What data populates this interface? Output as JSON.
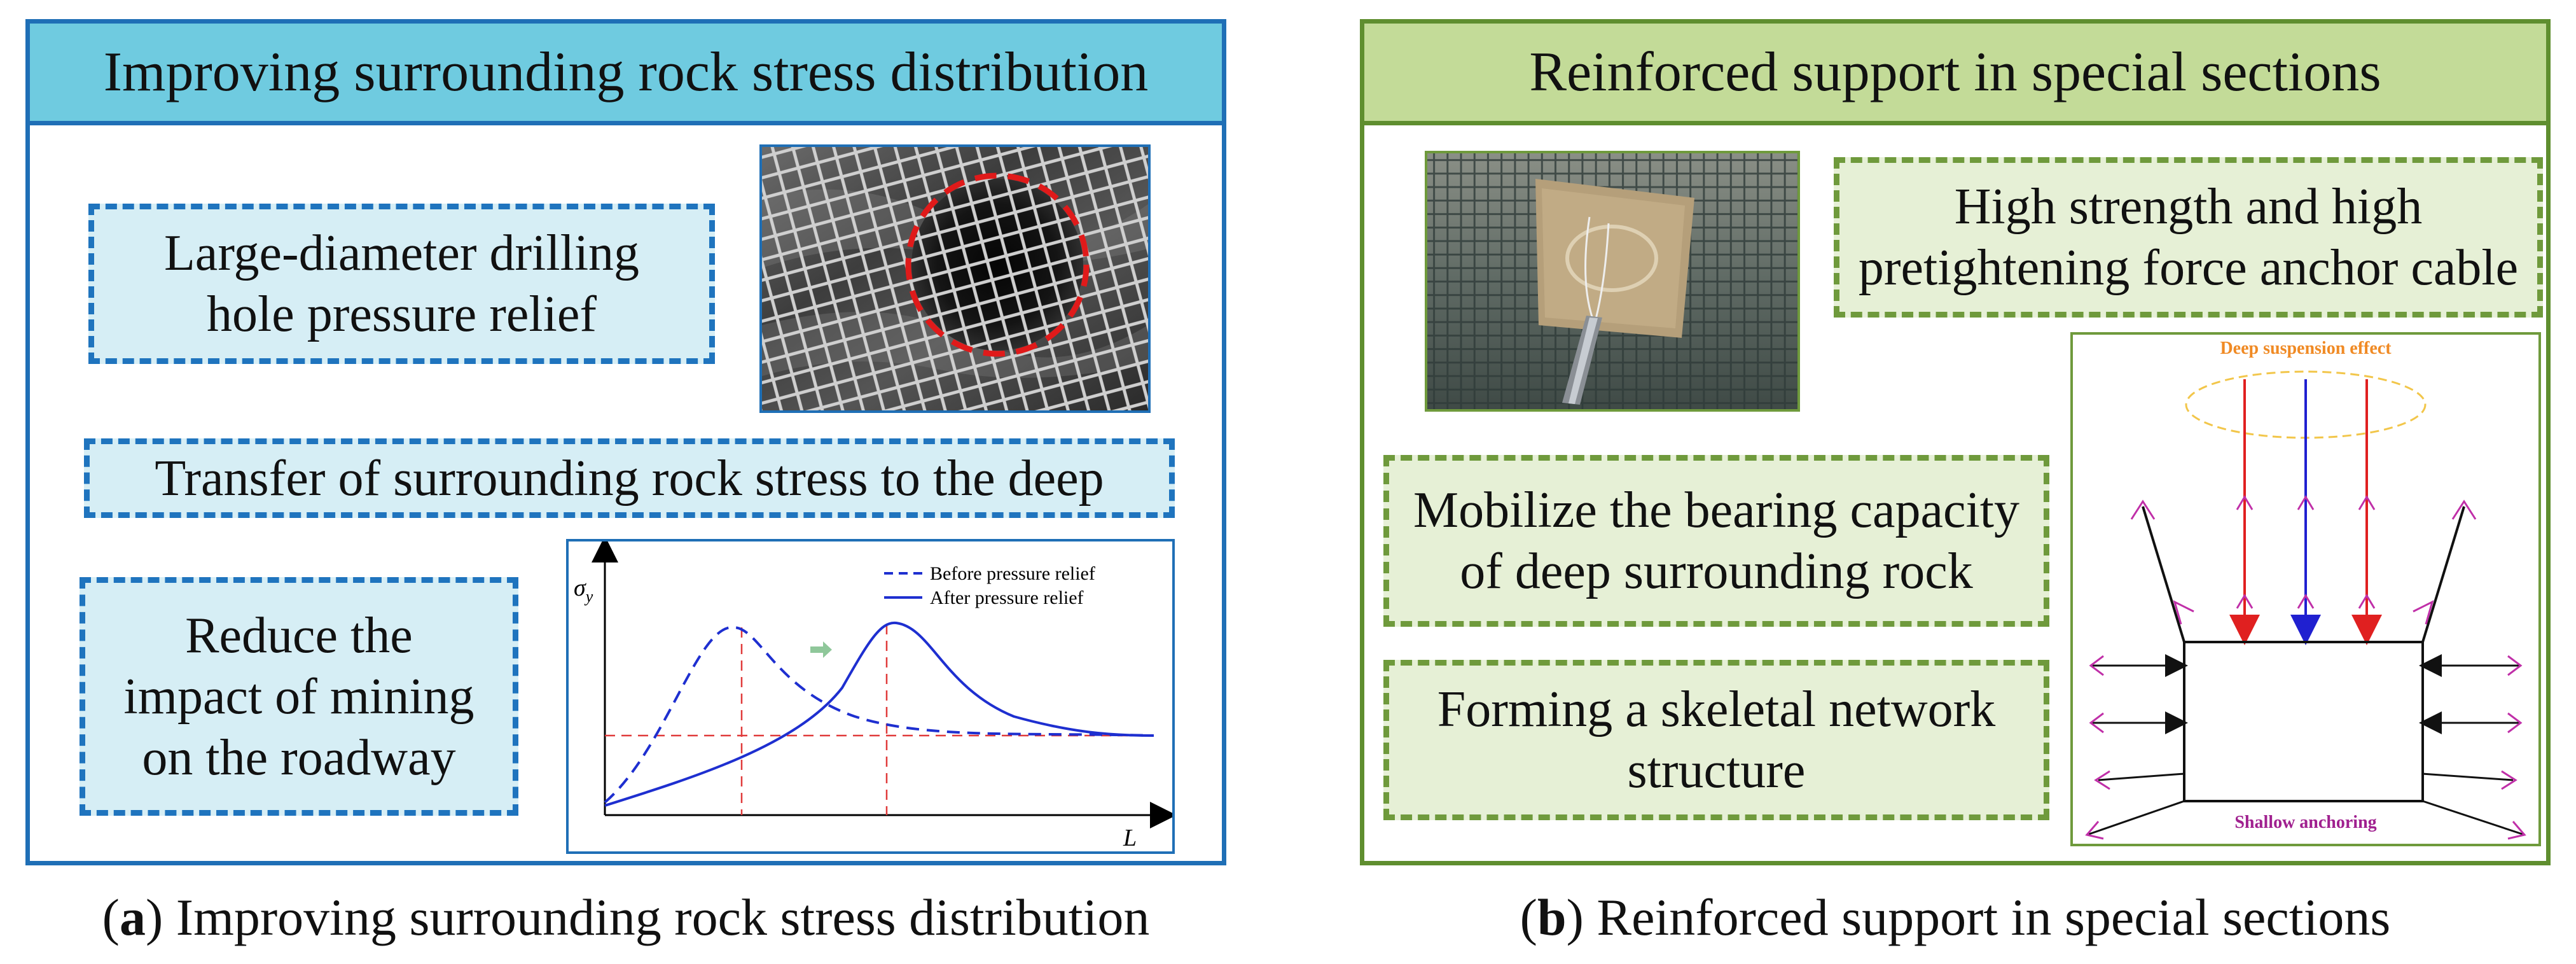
{
  "panel_a": {
    "header": "Improving surrounding rock stress distribution",
    "box_drilling_line1": "Large-diameter drilling",
    "box_drilling_line2": "hole pressure relief",
    "box_transfer": "Transfer of surrounding rock stress to the deep",
    "box_reduce_line1": "Reduce the",
    "box_reduce_line2": "impact of mining",
    "box_reduce_line3": "on the roadway",
    "chart": {
      "y_axis_symbol": "σ",
      "y_axis_subscript": "y",
      "x_axis_symbol": "L",
      "legend_before": "Before pressure relief",
      "legend_after": "After pressure relief"
    },
    "caption_letter": "a",
    "caption_text": "Improving surrounding rock stress distribution"
  },
  "panel_b": {
    "header": "Reinforced support in special sections",
    "box_cable_line1": "High strength and high",
    "box_cable_line2": "pretightening force anchor cable",
    "box_mobilize_line1": "Mobilize the bearing capacity",
    "box_mobilize_line2": "of deep surrounding rock",
    "box_skeletal_line1": "Forming a skeletal network",
    "box_skeletal_line2": "structure",
    "diagram": {
      "deep_label": "Deep suspension effect",
      "shallow_label": "Shallow anchoring"
    },
    "caption_letter": "b",
    "caption_text": "Reinforced support in special sections"
  },
  "colors": {
    "blue_frame": "#1f6fb6",
    "blue_header": "#6fcbe0",
    "green_frame": "#5f8e2f",
    "green_header": "#c3db98",
    "deep_label": "#f08a24",
    "shallow_label": "#a0208f"
  }
}
